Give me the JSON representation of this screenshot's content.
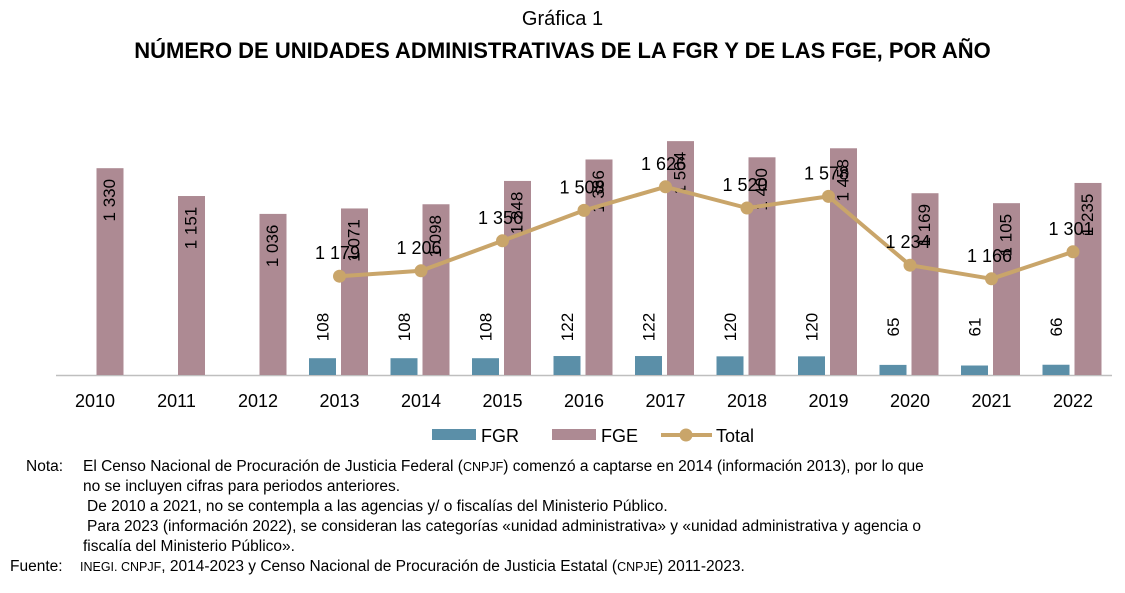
{
  "header": {
    "kicker": "Gráfica 1",
    "title": "NÚMERO DE UNIDADES ADMINISTRATIVAS DE LA FGR Y DE LAS FGE, POR AÑO"
  },
  "colors": {
    "fgr": "#5b8fa8",
    "fge": "#ad8a93",
    "total": "#c9a56a",
    "axis": "#bfbfbf"
  },
  "chart_data": {
    "type": "bar",
    "categories": [
      "2010",
      "2011",
      "2012",
      "2013",
      "2014",
      "2015",
      "2016",
      "2017",
      "2018",
      "2019",
      "2020",
      "2021",
      "2022"
    ],
    "series": [
      {
        "name": "FGR",
        "type": "bar",
        "values": [
          null,
          null,
          null,
          108,
          108,
          108,
          122,
          122,
          120,
          120,
          65,
          61,
          66
        ],
        "labels": [
          "",
          "",
          "",
          "108",
          "108",
          "108",
          "122",
          "122",
          "120",
          "120",
          "65",
          "61",
          "66"
        ]
      },
      {
        "name": "FGE",
        "type": "bar",
        "values": [
          1330,
          1151,
          1036,
          1071,
          1098,
          1248,
          1386,
          1504,
          1400,
          1458,
          1169,
          1105,
          1235
        ],
        "labels": [
          "1 330",
          "1 151",
          "1 036",
          "1 071",
          "1 098",
          "1 248",
          "1 386",
          "1 504",
          "1 400",
          "1 458",
          "1 169",
          "1 105",
          "1 235"
        ]
      },
      {
        "name": "Total",
        "type": "line",
        "values": [
          null,
          null,
          null,
          1179,
          1206,
          1356,
          1508,
          1626,
          1520,
          1578,
          1234,
          1166,
          1301
        ],
        "labels": [
          "",
          "",
          "",
          "1 179",
          "1 206",
          "1 356",
          "1 508",
          "1 626",
          "1 520",
          "1 578",
          "1 234",
          "1 166",
          "1 301"
        ]
      }
    ],
    "legend_position": "bottom",
    "grid": false
  },
  "notes": {
    "label": "Nota:",
    "line1_a": "El Censo Nacional de Procuración de Justicia Federal (",
    "line1_abbr": "CNPJF",
    "line1_b": ") comenzó a captarse en 2014 (información 2013), por lo que",
    "line2": "no se incluyen cifras para periodos anteriores.",
    "line3": "De 2010 a 2021, no se contempla a las agencias y/ o fiscalías del Ministerio Público.",
    "line4": "Para 2023 (información 2022), se consideran las categorías «unidad administrativa» y «unidad administrativa y agencia o",
    "line5": "fiscalía del Ministerio Público».",
    "source_label": "Fuente:",
    "source_abbr1": "INEGI. CNPJF",
    "source_text": ", 2014-2023 y Censo Nacional de Procuración de Justicia Estatal (",
    "source_abbr2": "CNPJE",
    "source_end": ") 2011-2023."
  }
}
